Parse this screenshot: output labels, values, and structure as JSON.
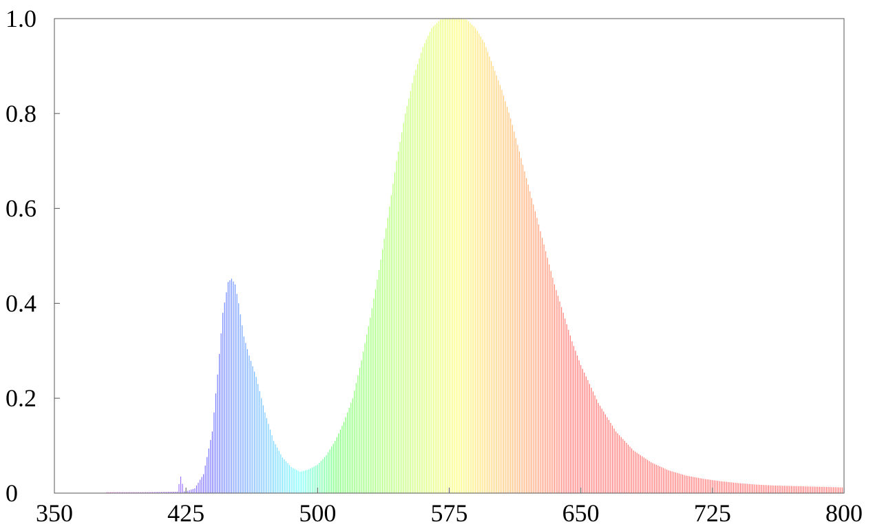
{
  "chart_data": {
    "type": "line",
    "title": "",
    "xlabel": "",
    "ylabel": "",
    "xlim": [
      350,
      800
    ],
    "ylim": [
      0,
      1.0
    ],
    "x_ticks": [
      "350",
      "425",
      "500",
      "575",
      "650",
      "725",
      "800"
    ],
    "y_ticks": [
      "0",
      "0.2",
      "0.4",
      "0.6",
      "0.8",
      "1.0"
    ],
    "grid": false,
    "legend": "none",
    "fill_style": "vertical lines colored by visible spectrum",
    "series": [
      {
        "x": [
          380,
          400,
          420,
          422,
          424,
          426,
          430,
          435,
          440,
          443,
          446,
          449,
          451,
          453,
          455,
          458,
          461,
          465,
          470,
          475,
          480,
          485,
          490,
          495,
          500,
          505,
          510,
          515,
          520,
          525,
          530,
          535,
          540,
          545,
          550,
          555,
          560,
          565,
          570,
          575,
          580,
          585,
          590,
          595,
          600,
          605,
          610,
          615,
          620,
          625,
          630,
          635,
          640,
          645,
          650,
          660,
          670,
          680,
          690,
          700,
          710,
          720,
          730,
          740,
          750,
          760,
          770,
          780,
          790,
          800
        ],
        "y": [
          0.002,
          0.002,
          0.003,
          0.035,
          0.004,
          0.005,
          0.01,
          0.04,
          0.13,
          0.25,
          0.38,
          0.445,
          0.452,
          0.44,
          0.4,
          0.33,
          0.29,
          0.245,
          0.17,
          0.11,
          0.075,
          0.055,
          0.045,
          0.05,
          0.06,
          0.08,
          0.11,
          0.15,
          0.2,
          0.28,
          0.37,
          0.47,
          0.58,
          0.7,
          0.8,
          0.88,
          0.94,
          0.98,
          0.998,
          1.0,
          1.0,
          0.998,
          0.98,
          0.95,
          0.9,
          0.85,
          0.79,
          0.72,
          0.65,
          0.58,
          0.51,
          0.44,
          0.38,
          0.32,
          0.27,
          0.19,
          0.13,
          0.09,
          0.065,
          0.048,
          0.037,
          0.03,
          0.025,
          0.021,
          0.018,
          0.016,
          0.015,
          0.014,
          0.013,
          0.012
        ]
      }
    ]
  }
}
